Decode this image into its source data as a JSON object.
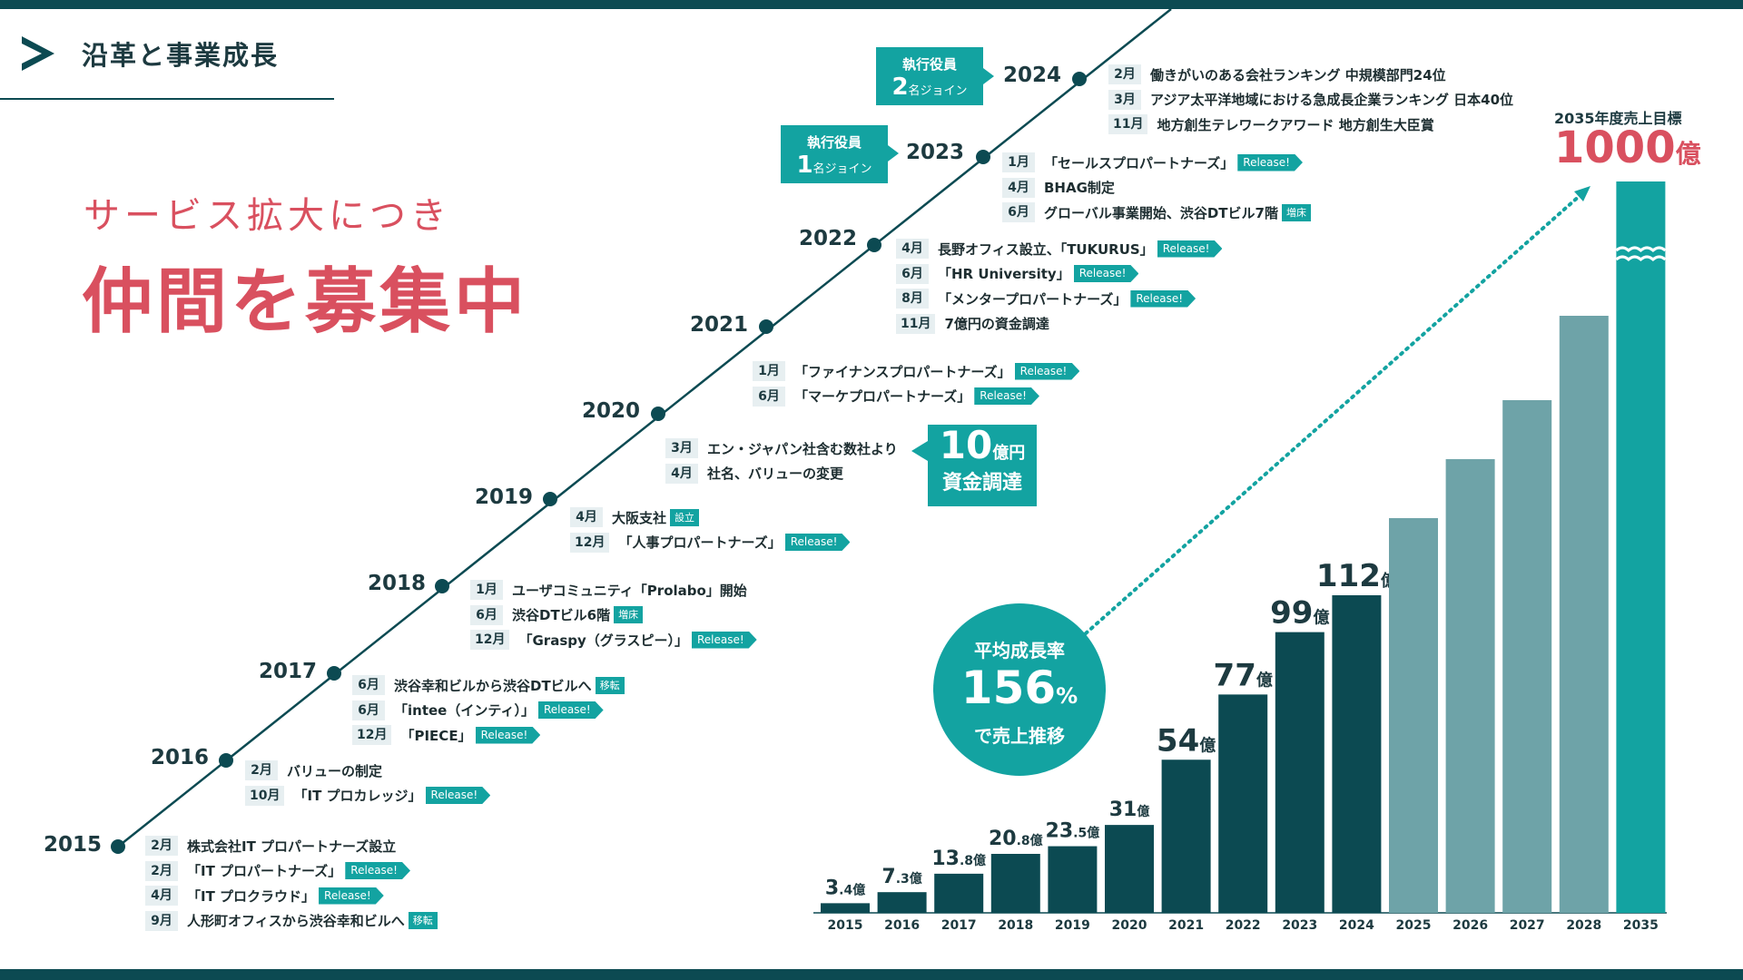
{
  "header": {
    "title": "沿革と事業成長"
  },
  "recruit": {
    "subtitle": "サービス拡大につき",
    "title": "仲間を募集中"
  },
  "colors": {
    "dark": "#0c4a52",
    "accent": "#13a3a1",
    "future": "#6ea3a8",
    "pink": "#d9505f"
  },
  "timeline": {
    "years": [
      {
        "year": "2015",
        "events": [
          {
            "month": "2月",
            "text": "株式会社IT プロパートナーズ設立",
            "tag": ""
          },
          {
            "month": "2月",
            "text": "「IT プロパートナーズ」",
            "tag": "Release!"
          },
          {
            "month": "4月",
            "text": "「IT プロクラウド」",
            "tag": "Release!"
          },
          {
            "month": "9月",
            "text": "人形町オフィスから渋谷幸和ビルへ",
            "tag": "移転"
          }
        ]
      },
      {
        "year": "2016",
        "events": [
          {
            "month": "2月",
            "text": "バリューの制定",
            "tag": ""
          },
          {
            "month": "10月",
            "text": "「IT プロカレッジ」",
            "tag": "Release!"
          }
        ]
      },
      {
        "year": "2017",
        "events": [
          {
            "month": "6月",
            "text": "渋谷幸和ビルから渋谷DTビルへ",
            "tag": "移転"
          },
          {
            "month": "6月",
            "text": "「intee（インティ）」",
            "tag": "Release!"
          },
          {
            "month": "12月",
            "text": "「PIECE」",
            "tag": "Release!"
          }
        ]
      },
      {
        "year": "2018",
        "events": [
          {
            "month": "1月",
            "text": "ユーザコミュニティ「Prolabo」開始",
            "tag": ""
          },
          {
            "month": "6月",
            "text": "渋谷DTビル6階",
            "tag": "増床"
          },
          {
            "month": "12月",
            "text": "「Graspy（グラスピー）」",
            "tag": "Release!"
          }
        ]
      },
      {
        "year": "2019",
        "events": [
          {
            "month": "4月",
            "text": "大阪支社",
            "tag": "設立"
          },
          {
            "month": "12月",
            "text": "「人事プロパートナーズ」",
            "tag": "Release!"
          }
        ]
      },
      {
        "year": "2020",
        "events": [
          {
            "month": "3月",
            "text": "エン・ジャパン社含む数社より",
            "tag": ""
          },
          {
            "month": "4月",
            "text": "社名、バリューの変更",
            "tag": ""
          }
        ]
      },
      {
        "year": "2021",
        "events": [
          {
            "month": "1月",
            "text": "「ファイナンスプロパートナーズ」",
            "tag": "Release!"
          },
          {
            "month": "6月",
            "text": "「マーケプロパートナーズ」",
            "tag": "Release!"
          }
        ]
      },
      {
        "year": "2022",
        "events": [
          {
            "month": "4月",
            "text": "長野オフィス設立、「TUKURUS」",
            "tag": "Release!"
          },
          {
            "month": "6月",
            "text": "「HR University」",
            "tag": "Release!"
          },
          {
            "month": "8月",
            "text": "「メンタープロパートナーズ」",
            "tag": "Release!"
          },
          {
            "month": "11月",
            "text": "7億円の資金調達",
            "tag": ""
          }
        ]
      },
      {
        "year": "2023",
        "events": [
          {
            "month": "1月",
            "text": "「セールスプロパートナーズ」",
            "tag": "Release!"
          },
          {
            "month": "4月",
            "text": "BHAG制定",
            "tag": ""
          },
          {
            "month": "6月",
            "text": "グローバル事業開始、渋谷DTビル7階",
            "tag": "増床"
          }
        ]
      },
      {
        "year": "2024",
        "events": [
          {
            "month": "2月",
            "text": "働きがいのある会社ランキング 中規模部門24位",
            "tag": ""
          },
          {
            "month": "3月",
            "text": "アジア太平洋地域における急成長企業ランキング 日本40位",
            "tag": ""
          },
          {
            "month": "11月",
            "text": "地方創生テレワークアワード 地方創生大臣賞",
            "tag": ""
          }
        ]
      }
    ],
    "exec_2023": {
      "title": "執行役員",
      "num": "1",
      "label": "名ジョイン"
    },
    "exec_2024": {
      "title": "執行役員",
      "num": "2",
      "label": "名ジョイン"
    },
    "funding": {
      "num": "10",
      "unit": "億円",
      "label": "資金調達"
    }
  },
  "growth": {
    "label1": "平均成長率",
    "value": "156",
    "unit": "%",
    "label2": "で売上推移"
  },
  "target": {
    "label": "2035年度売上目標",
    "value": "1000",
    "unit": "億"
  },
  "chart_data": {
    "type": "bar",
    "unit": "億",
    "categories": [
      "2015",
      "2016",
      "2017",
      "2018",
      "2019",
      "2020",
      "2021",
      "2022",
      "2023",
      "2024",
      "2025",
      "2026",
      "2027",
      "2028",
      "2035"
    ],
    "values": [
      3.4,
      7.3,
      13.8,
      20.8,
      23.5,
      31,
      54,
      77,
      99,
      112,
      null,
      null,
      null,
      null,
      1000
    ],
    "labels": [
      "3.4",
      "7.3",
      "13.8",
      "20.8",
      "23.5",
      "31",
      "54",
      "77",
      "99",
      "112",
      "",
      "",
      "",
      "",
      ""
    ],
    "series_kind": [
      "actual",
      "actual",
      "actual",
      "actual",
      "actual",
      "actual",
      "actual",
      "actual",
      "actual",
      "actual",
      "projection",
      "projection",
      "projection",
      "projection",
      "target"
    ]
  }
}
